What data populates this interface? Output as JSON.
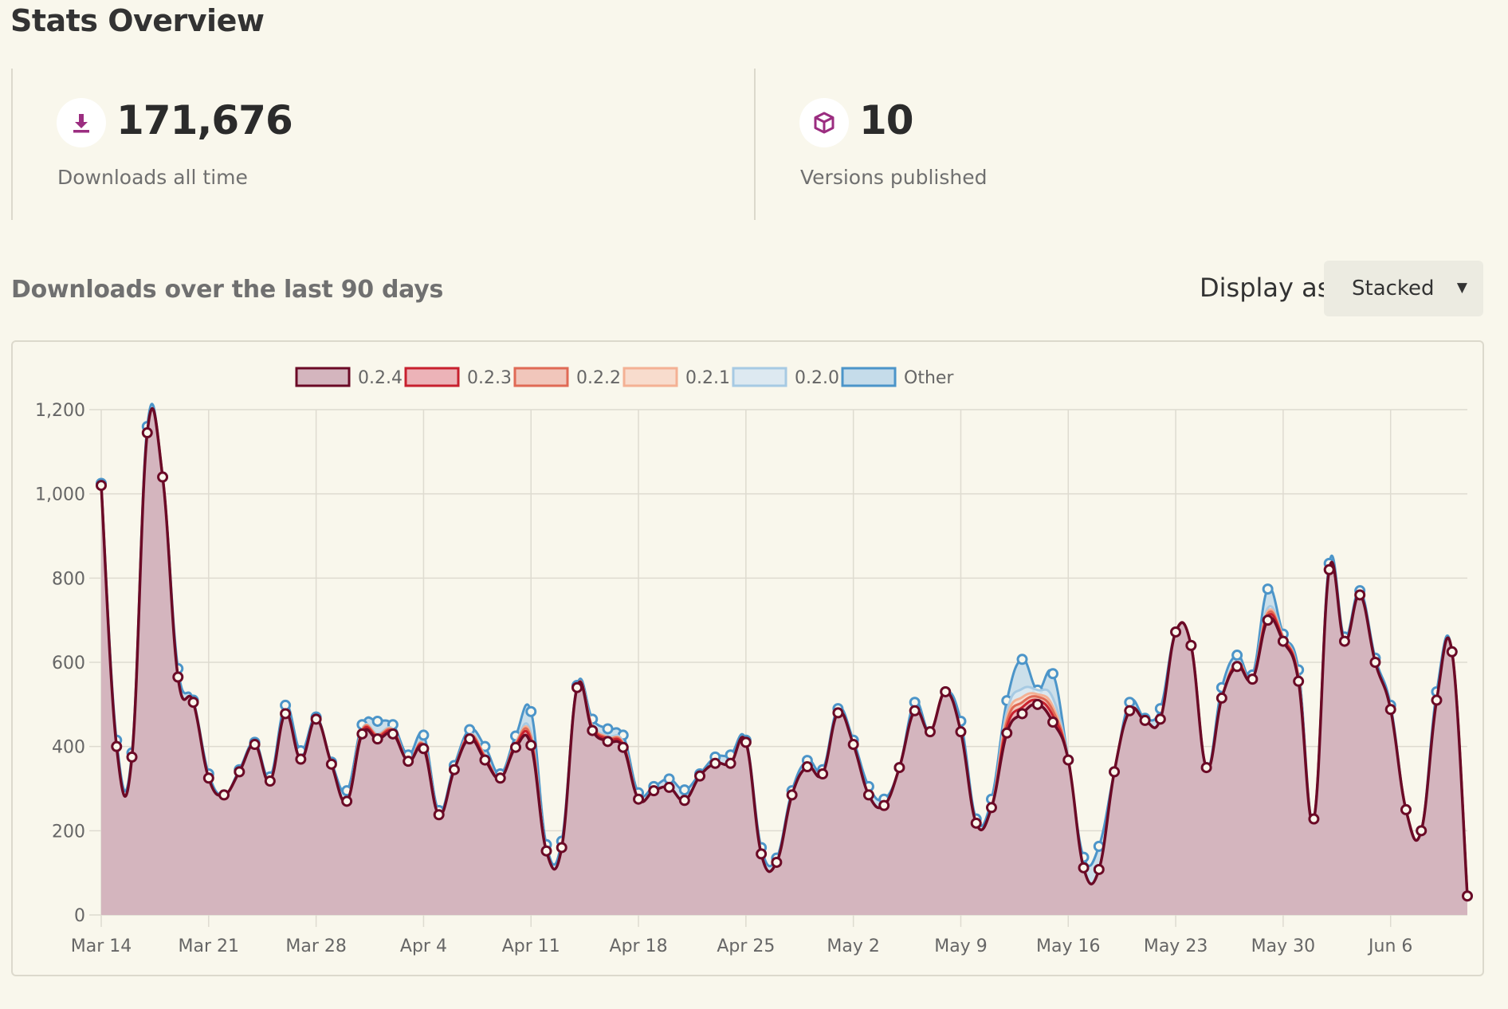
{
  "header": {
    "title": "Stats Overview"
  },
  "stats": [
    {
      "value": "171,676",
      "label": "Downloads all time",
      "icon": "download-icon"
    },
    {
      "value": "10",
      "label": "Versions published",
      "icon": "package-icon"
    }
  ],
  "downloads_section": {
    "title": "Downloads over the last 90 days",
    "display_label": "Display as",
    "display_value": "Stacked"
  },
  "colors": {
    "accent": "#9b2d80",
    "v024": "#6b0a26",
    "v024_fill": "#d4b5be",
    "v023": "#c8202e",
    "v022": "#e06a55",
    "v021": "#f4b194",
    "v020": "#a7cae3",
    "other": "#4c95c9"
  },
  "chart_data": {
    "type": "area",
    "stacked": true,
    "title": "",
    "xlabel": "",
    "ylabel": "",
    "ylim": [
      0,
      1200
    ],
    "yticks": [
      0,
      200,
      400,
      600,
      800,
      1000,
      1200
    ],
    "ytick_labels": [
      "0",
      "200",
      "400",
      "600",
      "800",
      "1,000",
      "1,200"
    ],
    "x_tick_labels": [
      "Mar 14",
      "Mar 21",
      "Mar 28",
      "Apr 4",
      "Apr 11",
      "Apr 18",
      "Apr 25",
      "May 2",
      "May 9",
      "May 16",
      "May 23",
      "May 30",
      "Jun 6"
    ],
    "x_tick_days": [
      0,
      7,
      14,
      21,
      28,
      35,
      42,
      49,
      56,
      63,
      70,
      77,
      84
    ],
    "num_days": 90,
    "legend": [
      "0.2.4",
      "0.2.3",
      "0.2.2",
      "0.2.1",
      "0.2.0",
      "Other"
    ],
    "legend_position": "top-center",
    "grid": true,
    "series": [
      {
        "name": "0.2.4",
        "values": [
          1020,
          400,
          375,
          1145,
          1040,
          565,
          505,
          325,
          285,
          340,
          405,
          318,
          478,
          370,
          465,
          358,
          270,
          430,
          418,
          430,
          365,
          395,
          238,
          345,
          418,
          368,
          325,
          398,
          403,
          152,
          160,
          540,
          438,
          412,
          398,
          275,
          295,
          303,
          272,
          330,
          360,
          360,
          410,
          145,
          125,
          285,
          352,
          335,
          480,
          405,
          285,
          260,
          350,
          485,
          435,
          530,
          435,
          218,
          255,
          432,
          478,
          500,
          458,
          368,
          112,
          108,
          340,
          485,
          462,
          465,
          672,
          640,
          350,
          515,
          590,
          560,
          700,
          650,
          555,
          228,
          820,
          650,
          760,
          600,
          488,
          250,
          200,
          510,
          625,
          45
        ]
      },
      {
        "name": "0.2.3",
        "values": [
          0,
          0,
          0,
          0,
          0,
          0,
          0,
          0,
          0,
          0,
          0,
          0,
          0,
          0,
          0,
          0,
          0,
          5,
          5,
          5,
          0,
          5,
          0,
          0,
          5,
          5,
          0,
          5,
          10,
          0,
          0,
          0,
          5,
          5,
          5,
          0,
          0,
          0,
          0,
          0,
          0,
          0,
          0,
          0,
          0,
          0,
          0,
          0,
          0,
          0,
          0,
          0,
          0,
          0,
          0,
          0,
          0,
          0,
          0,
          15,
          15,
          10,
          15,
          0,
          0,
          0,
          0,
          0,
          0,
          0,
          0,
          0,
          0,
          0,
          5,
          0,
          10,
          5,
          5,
          0,
          0,
          0,
          0,
          0,
          0,
          0,
          0,
          0,
          0,
          0
        ]
      },
      {
        "name": "0.2.2",
        "values": [
          0,
          0,
          0,
          0,
          0,
          0,
          0,
          0,
          0,
          0,
          0,
          0,
          0,
          0,
          0,
          0,
          0,
          3,
          3,
          3,
          0,
          3,
          0,
          0,
          3,
          3,
          0,
          3,
          7,
          0,
          0,
          0,
          3,
          3,
          3,
          0,
          0,
          0,
          0,
          0,
          0,
          0,
          0,
          0,
          0,
          0,
          0,
          0,
          0,
          0,
          0,
          0,
          0,
          0,
          0,
          0,
          0,
          0,
          0,
          12,
          12,
          8,
          12,
          0,
          0,
          0,
          0,
          0,
          0,
          0,
          0,
          0,
          0,
          0,
          3,
          0,
          6,
          3,
          3,
          0,
          0,
          0,
          0,
          0,
          0,
          0,
          0,
          0,
          0,
          0
        ]
      },
      {
        "name": "0.2.1",
        "values": [
          0,
          0,
          0,
          0,
          0,
          0,
          0,
          0,
          0,
          0,
          0,
          0,
          0,
          0,
          0,
          0,
          0,
          2,
          2,
          2,
          0,
          2,
          0,
          0,
          2,
          2,
          0,
          2,
          5,
          0,
          0,
          0,
          2,
          2,
          2,
          0,
          0,
          0,
          0,
          0,
          0,
          0,
          0,
          0,
          0,
          0,
          0,
          0,
          0,
          0,
          0,
          0,
          0,
          0,
          0,
          0,
          0,
          0,
          0,
          10,
          12,
          6,
          10,
          0,
          0,
          0,
          0,
          0,
          0,
          0,
          0,
          0,
          0,
          0,
          2,
          0,
          5,
          2,
          2,
          0,
          0,
          0,
          0,
          0,
          0,
          0,
          0,
          0,
          0,
          0
        ]
      },
      {
        "name": "0.2.0",
        "values": [
          0,
          0,
          0,
          0,
          0,
          0,
          0,
          0,
          0,
          0,
          0,
          0,
          0,
          0,
          0,
          0,
          0,
          2,
          2,
          2,
          0,
          2,
          0,
          0,
          2,
          2,
          0,
          2,
          8,
          0,
          0,
          0,
          2,
          3,
          3,
          0,
          0,
          0,
          0,
          0,
          0,
          0,
          0,
          0,
          0,
          0,
          0,
          0,
          0,
          0,
          0,
          0,
          0,
          0,
          0,
          0,
          0,
          0,
          0,
          15,
          20,
          10,
          20,
          0,
          0,
          0,
          0,
          0,
          0,
          0,
          0,
          0,
          0,
          0,
          2,
          0,
          8,
          2,
          2,
          0,
          0,
          0,
          0,
          0,
          0,
          0,
          0,
          0,
          0,
          0
        ]
      },
      {
        "name": "Other",
        "values": [
          5,
          15,
          10,
          15,
          0,
          20,
          5,
          10,
          0,
          5,
          5,
          10,
          20,
          20,
          5,
          5,
          25,
          10,
          30,
          10,
          15,
          20,
          10,
          10,
          10,
          20,
          10,
          15,
          50,
          15,
          15,
          5,
          15,
          17,
          16,
          15,
          10,
          20,
          25,
          5,
          15,
          20,
          5,
          15,
          10,
          10,
          15,
          10,
          10,
          10,
          20,
          15,
          0,
          20,
          0,
          0,
          25,
          10,
          20,
          25,
          70,
          0,
          58,
          0,
          25,
          55,
          0,
          20,
          5,
          25,
          0,
          0,
          0,
          25,
          15,
          10,
          45,
          5,
          15,
          0,
          15,
          10,
          10,
          10,
          10,
          0,
          0,
          20,
          0,
          0
        ]
      }
    ]
  }
}
